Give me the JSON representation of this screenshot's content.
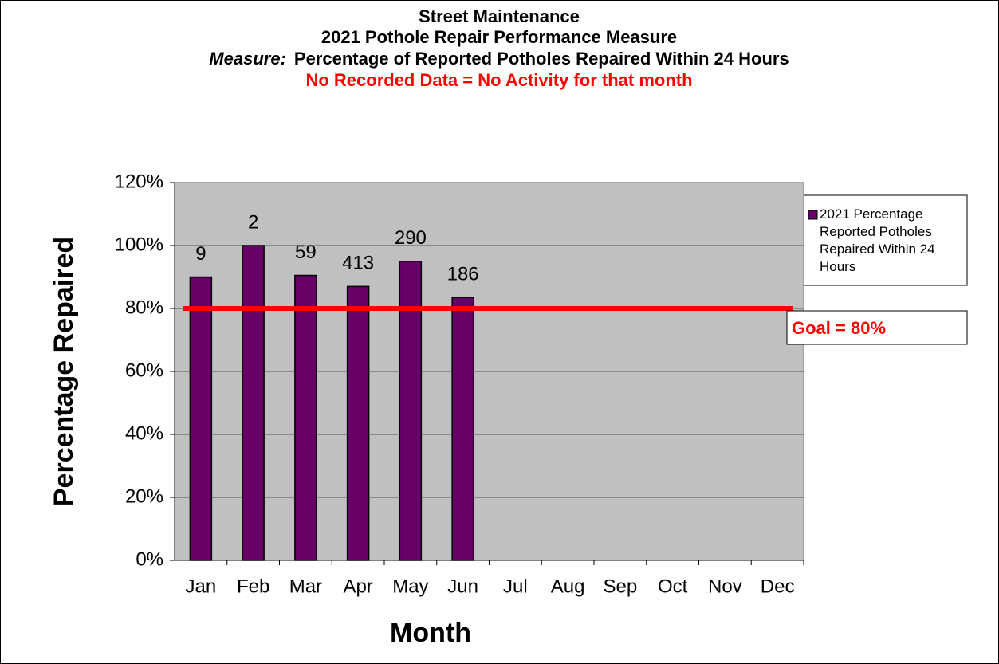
{
  "chart_data": {
    "type": "bar",
    "title": "Street Maintenance",
    "subtitle": "2021 Pothole Repair Performance Measure",
    "measure_label": "Measure:",
    "measure": "Percentage of Reported Potholes Repaired Within 24 Hours",
    "note": "No Recorded Data = No Activity for that month",
    "x_label": "Month",
    "y_label": "Percentage Repaired",
    "categories": [
      "Jan",
      "Feb",
      "Mar",
      "Apr",
      "May",
      "Jun",
      "Jul",
      "Aug",
      "Sep",
      "Oct",
      "Nov",
      "Dec"
    ],
    "series": [
      {
        "name": "2021 Percentage Reported Potholes Repaired Within 24 Hours",
        "color": "#660066",
        "values": [
          90,
          100,
          90.5,
          87,
          95,
          83.5,
          null,
          null,
          null,
          null,
          null,
          null
        ]
      }
    ],
    "bar_labels": [
      9,
      2,
      59,
      413,
      290,
      186,
      null,
      null,
      null,
      null,
      null,
      null
    ],
    "goal": {
      "value": 80,
      "label": "Goal = 80%",
      "color": "#ff0000"
    },
    "ylim": [
      0,
      120
    ],
    "yticks": [
      {
        "value": 0,
        "label": "0%"
      },
      {
        "value": 20,
        "label": "20%"
      },
      {
        "value": 40,
        "label": "40%"
      },
      {
        "value": 60,
        "label": "60%"
      },
      {
        "value": 80,
        "label": "80%"
      },
      {
        "value": 100,
        "label": "100%"
      },
      {
        "value": 120,
        "label": "120%"
      }
    ],
    "grid": true
  }
}
